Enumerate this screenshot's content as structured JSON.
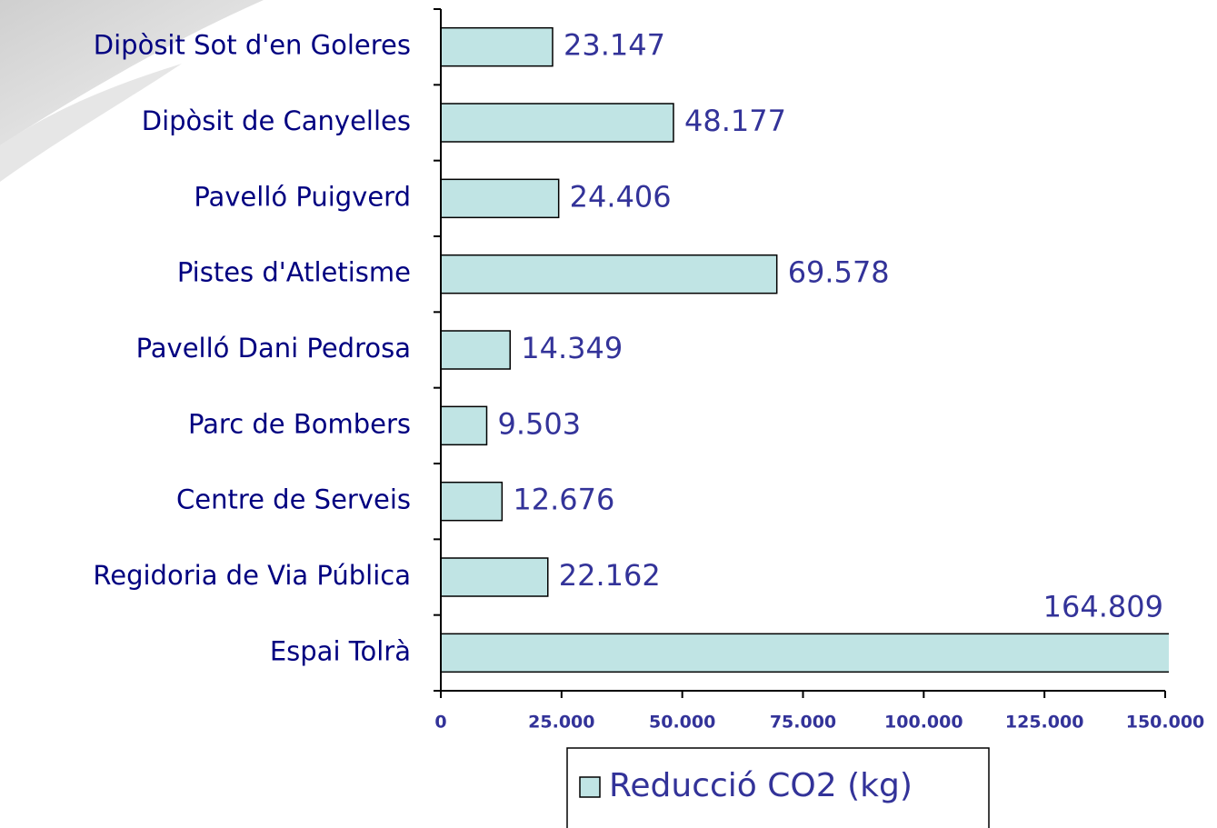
{
  "chart_data": {
    "type": "barh",
    "categories": [
      "Dipòsit Sot d'en Goleres",
      "Dipòsit de Canyelles",
      "Pavelló Puigverd",
      "Pistes d'Atletisme",
      "Pavelló Dani Pedrosa",
      "Parc de Bombers",
      "Centre de Serveis",
      "Regidoria de Via Pública",
      "Espai Tolrà"
    ],
    "series": [
      {
        "name": "Reducció CO2 (kg)",
        "color": "#c0e4e4",
        "values": [
          23147,
          48177,
          24406,
          69578,
          14349,
          9503,
          12676,
          22162,
          164809
        ],
        "value_labels": [
          "23.147",
          "48.177",
          "24.406",
          "69.578",
          "14.349",
          "9.503",
          "12.676",
          "22.162",
          "164.809"
        ]
      }
    ],
    "xlim": [
      0,
      150000
    ],
    "xticks": [
      0,
      {
        "value": 25000,
        "label": "25.000"
      },
      {
        "value": 50000,
        "label": "50.000"
      },
      {
        "value": 75000,
        "label": "75.000"
      },
      {
        "value": 100000,
        "label": "100.000"
      },
      {
        "value": 125000,
        "label": "125.000"
      },
      {
        "value": 150000,
        "label": "150.000"
      }
    ],
    "legend": "bottom"
  }
}
